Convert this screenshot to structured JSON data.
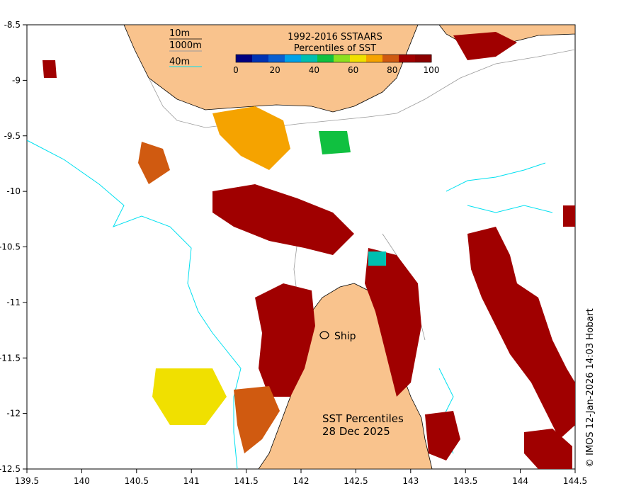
{
  "legend": {
    "title_line1": "1992-2016 SSTAARS",
    "title_line2": "Percentiles of SST",
    "tick_labels": [
      "0",
      "20",
      "40",
      "60",
      "80",
      "100"
    ],
    "colors": [
      "#00007f",
      "#0033b3",
      "#0a5fd0",
      "#00a2e8",
      "#00bfb0",
      "#10c040",
      "#8ce020",
      "#f0e000",
      "#f5a300",
      "#d05a10",
      "#a00000",
      "#8b0000"
    ]
  },
  "depth_key": {
    "contour_10m": "10m",
    "contour_1000m": "1000m",
    "contour_40m": "40m"
  },
  "place_label": "Ship",
  "map_title_line1": "SST Percentiles",
  "map_title_line2": "28 Dec 2025",
  "credit": "© IMOS 12-Jan-2026 14:03 Hobart",
  "x_axis": {
    "ticks": [
      "139.5",
      "140",
      "140.5",
      "141",
      "141.5",
      "142",
      "142.5",
      "143",
      "143.5",
      "144",
      "144.5"
    ]
  },
  "y_axis": {
    "ticks": [
      "-8.5",
      "-9",
      "-9.5",
      "-10",
      "-10.5",
      "-11",
      "-11.5",
      "-12",
      "-12.5"
    ]
  },
  "colors": {
    "land": "#f9c38d",
    "contour_cyan": "#00e0f0",
    "contour_grey": "#9a9a9a",
    "warm": "#a00000"
  }
}
